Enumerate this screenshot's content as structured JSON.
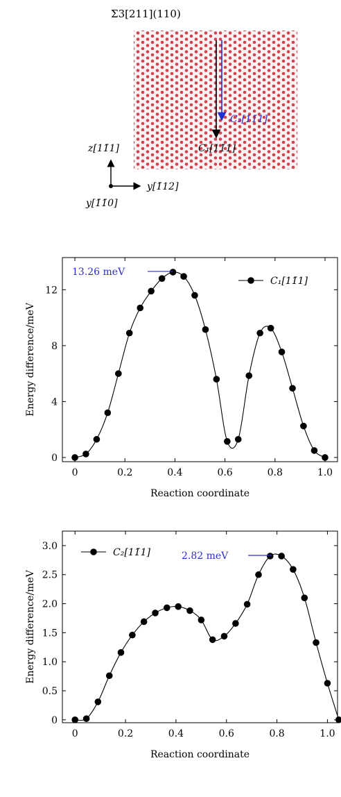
{
  "structure": {
    "title": "Σ3[211](110)",
    "arrow_c2_label": "C₂[11̄1]",
    "arrow_c1_label": "C₁[11̄1]",
    "axis_z_label": "z[11̄1]",
    "axis_y_label": "y[1̄12]",
    "axis_x_label": "y[1̄1̄0]",
    "colors": {
      "atoms": "#d2424c",
      "arrow_c2": "#1f2fd0",
      "arrow_c1": "#000000"
    }
  },
  "chart_data": [
    {
      "type": "line",
      "series": [
        {
          "name": "C₁[11̄1]",
          "x": [
            0,
            0.044,
            0.087,
            0.131,
            0.174,
            0.218,
            0.261,
            0.305,
            0.348,
            0.392,
            0.435,
            0.479,
            0.522,
            0.566,
            0.609,
            0.653,
            0.696,
            0.74,
            0.783,
            0.827,
            0.87,
            0.914,
            0.957,
            1.0
          ],
          "y": [
            0,
            0.25,
            1.3,
            3.2,
            6.0,
            8.9,
            10.7,
            11.9,
            12.8,
            13.26,
            12.95,
            11.6,
            9.15,
            5.6,
            1.15,
            1.3,
            5.85,
            8.9,
            9.25,
            7.55,
            4.95,
            2.25,
            0.5,
            0.0
          ],
          "marker": "circle",
          "line": "smooth"
        }
      ],
      "xlabel": "Reaction coordinate",
      "ylabel": "Energy difference/meV",
      "xlim": [
        -0.05,
        1.05
      ],
      "ylim": [
        -0.3,
        14.3
      ],
      "xticks": [
        "0",
        "0.2",
        "0.4",
        "0.6",
        "0.8",
        "1.0"
      ],
      "yticks": [
        "0",
        "4",
        "8",
        "12"
      ],
      "annotation": {
        "text": "13.26 meV",
        "x": 0.392,
        "y": 13.26
      },
      "legend": "top-right"
    },
    {
      "type": "line",
      "series": [
        {
          "name": "C₂[11̄1]",
          "x": [
            0,
            0.045,
            0.091,
            0.136,
            0.182,
            0.227,
            0.273,
            0.318,
            0.364,
            0.409,
            0.455,
            0.5,
            0.545,
            0.591,
            0.636,
            0.682,
            0.727,
            0.773,
            0.818,
            0.864,
            0.909,
            0.955,
            1.0,
            1.045
          ],
          "y": [
            0.0,
            0.02,
            0.31,
            0.76,
            1.16,
            1.46,
            1.69,
            1.84,
            1.93,
            1.95,
            1.88,
            1.72,
            1.38,
            1.44,
            1.66,
            1.99,
            2.5,
            2.82,
            2.82,
            2.59,
            2.1,
            1.33,
            0.63,
            0.0
          ],
          "marker": "circle",
          "line": "smooth"
        }
      ],
      "xlabel": "Reaction coordinate",
      "ylabel": "Energy difference/meV",
      "xlim": [
        -0.05,
        1.04
      ],
      "ylim": [
        -0.05,
        3.25
      ],
      "xticks": [
        "0",
        "0.2",
        "0.4",
        "0.6",
        "0.8",
        "1.0"
      ],
      "yticks": [
        "0",
        "0.5",
        "1.0",
        "1.5",
        "2.0",
        "2.5",
        "3.0"
      ],
      "annotation": {
        "text": "2.82 meV",
        "x": 0.78,
        "y": 2.82
      },
      "legend": "top-left"
    }
  ]
}
